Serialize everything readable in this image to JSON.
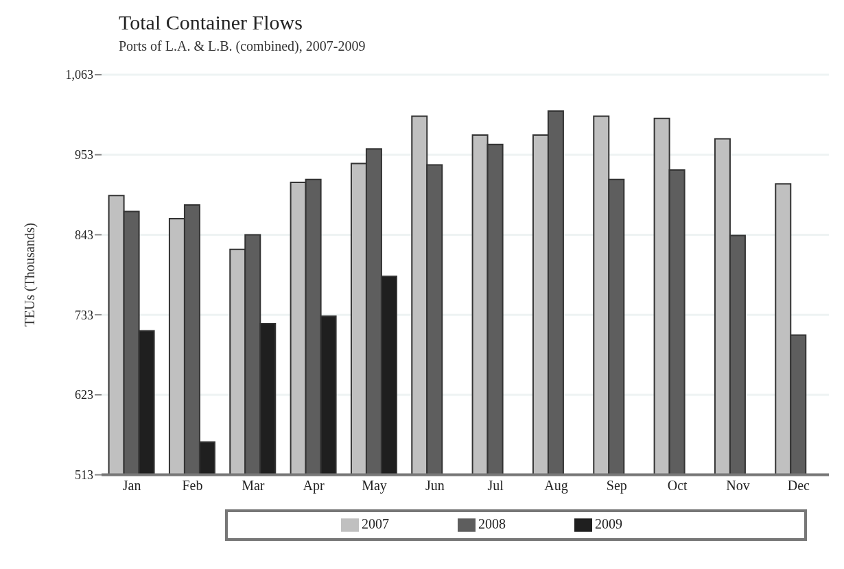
{
  "chart_data": {
    "type": "bar",
    "title": "Total Container Flows",
    "subtitle": "Ports of L.A. & L.B. (combined), 2007-2009",
    "ylabel": "TEUs (Thousands)",
    "categories": [
      "Jan",
      "Feb",
      "Mar",
      "Apr",
      "May",
      "Jun",
      "Jul",
      "Aug",
      "Sep",
      "Oct",
      "Nov",
      "Dec"
    ],
    "series": [
      {
        "name": "2007",
        "color": "#c0c0c0",
        "values": [
          897,
          865,
          823,
          915,
          941,
          1006,
          980,
          980,
          1006,
          1003,
          975,
          913
        ]
      },
      {
        "name": "2008",
        "color": "#5e5e5e",
        "values": [
          875,
          884,
          843,
          919,
          961,
          939,
          967,
          1013,
          919,
          932,
          842,
          705
        ]
      },
      {
        "name": "2009",
        "color": "#1f1f1f",
        "values": [
          711,
          558,
          721,
          731,
          786,
          null,
          null,
          null,
          null,
          null,
          null,
          null
        ]
      }
    ],
    "ylim": [
      513,
      1063
    ],
    "yticks": [
      513,
      623,
      733,
      843,
      953,
      {
        "value": 1063,
        "label": "1,063"
      }
    ],
    "grid": "y",
    "legend": "bottom"
  }
}
